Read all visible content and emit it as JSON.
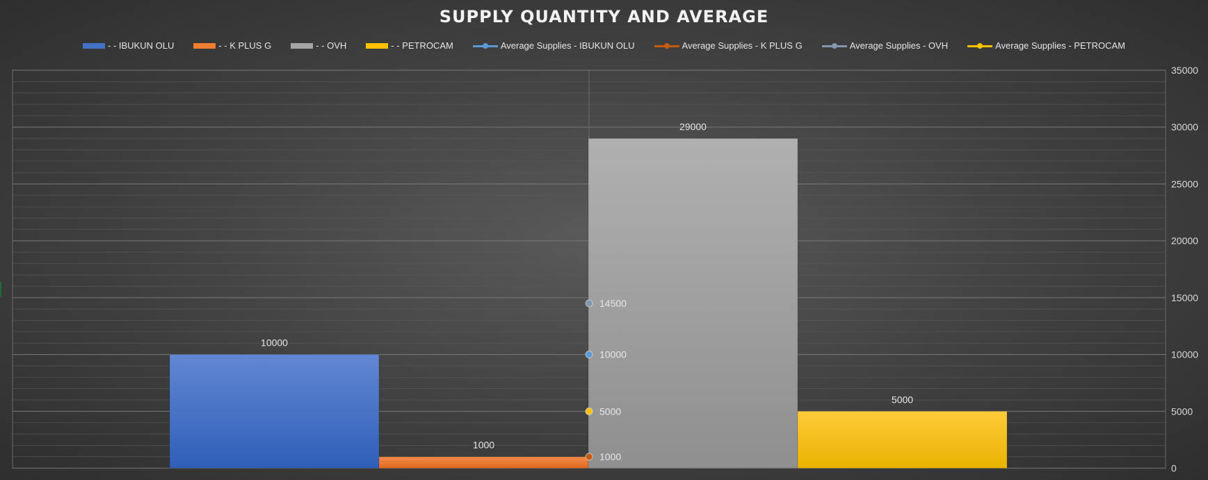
{
  "chart_data": {
    "type": "bar",
    "title": "SUPPLY QUANTITY AND AVERAGE",
    "xlabel": "",
    "ylabel": "",
    "ylim": [
      0,
      35000
    ],
    "yticks": [
      0,
      5000,
      10000,
      15000,
      20000,
      25000,
      30000,
      35000
    ],
    "ytick_labels": [
      "0",
      "5000",
      "10000",
      "15000",
      "20000",
      "25000",
      "30000",
      "35000"
    ],
    "y_axis_side": "right",
    "grid": true,
    "legend_position": "top",
    "series": [
      {
        "name": "- - IBUKUN OLU",
        "kind": "bar",
        "value": 10000,
        "label": "10000",
        "color": "#4472c4"
      },
      {
        "name": "- - K PLUS G",
        "kind": "bar",
        "value": 1000,
        "label": "1000",
        "color": "#ed7d31"
      },
      {
        "name": "- - OVH",
        "kind": "bar",
        "value": 29000,
        "label": "29000",
        "color": "#a5a5a5"
      },
      {
        "name": "- - PETROCAM",
        "kind": "bar",
        "value": 5000,
        "label": "5000",
        "color": "#ffc000"
      },
      {
        "name": "Average Supplies - IBUKUN OLU",
        "kind": "line",
        "value": 10000,
        "label": "10000",
        "color": "#5b9bd5"
      },
      {
        "name": "Average Supplies - K PLUS G",
        "kind": "line",
        "value": 1000,
        "label": "1000",
        "color": "#c55a11"
      },
      {
        "name": "Average Supplies - OVH",
        "kind": "line",
        "value": 14500,
        "label": "14500",
        "color": "#8497b0"
      },
      {
        "name": "Average Supplies - PETROCAM",
        "kind": "line",
        "value": 5000,
        "label": "5000",
        "color": "#ffc000"
      }
    ]
  }
}
